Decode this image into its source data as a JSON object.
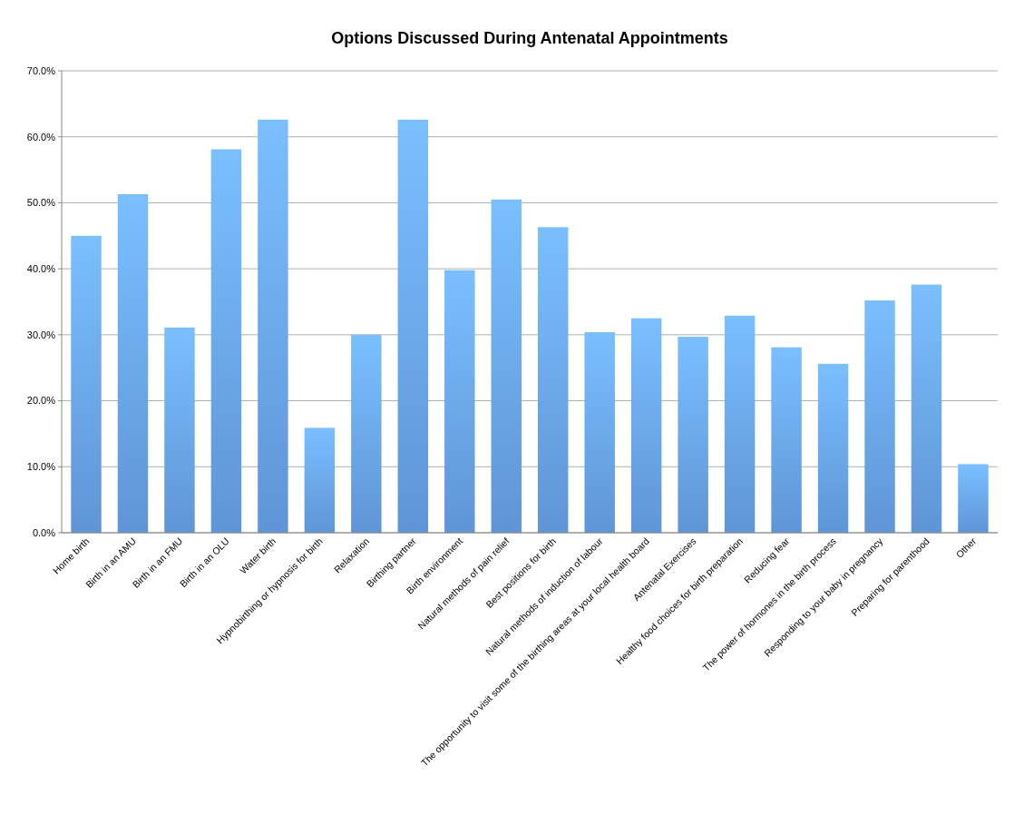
{
  "chart_data": {
    "type": "bar",
    "title": "Options Discussed During Antenatal Appointments",
    "categories": [
      "Home birth",
      "Birth in an AMU",
      "Birth in an FMU",
      "Birth in an OLU",
      "Water birth",
      "Hypnobirthing or hypnosis for birth",
      "Relaxation",
      "Birthing partner",
      "Birth environment",
      "Natural methods of pain relief",
      "Best positions for birth",
      "Natural methods of induction of labour",
      "The opportunity to visit some of the birthing areas at your local health board",
      "Antenatal Exercises",
      "Healthy food choices for birth preparation",
      "Reducing fear",
      "The power of hormones in the birth process",
      "Responding to your baby in pregnancy",
      "Preparing for parenthood",
      "Other"
    ],
    "values": [
      45.0,
      51.3,
      31.1,
      58.1,
      62.6,
      15.9,
      30.0,
      62.6,
      39.8,
      50.5,
      46.3,
      30.4,
      32.5,
      29.7,
      32.9,
      28.1,
      25.6,
      35.2,
      37.6,
      10.4
    ],
    "color": "#5f95d6",
    "ylim": [
      0,
      70
    ],
    "yticks": [
      {
        "value": 0,
        "label": "0.0%"
      },
      {
        "value": 10,
        "label": "10.0%"
      },
      {
        "value": 20,
        "label": "20.0%"
      },
      {
        "value": 30,
        "label": "30.0%"
      },
      {
        "value": 40,
        "label": "40.0%"
      },
      {
        "value": 50,
        "label": "50.0%"
      },
      {
        "value": 60,
        "label": "60.0%"
      },
      {
        "value": 70,
        "label": "70.0%"
      }
    ],
    "grid": "y"
  }
}
